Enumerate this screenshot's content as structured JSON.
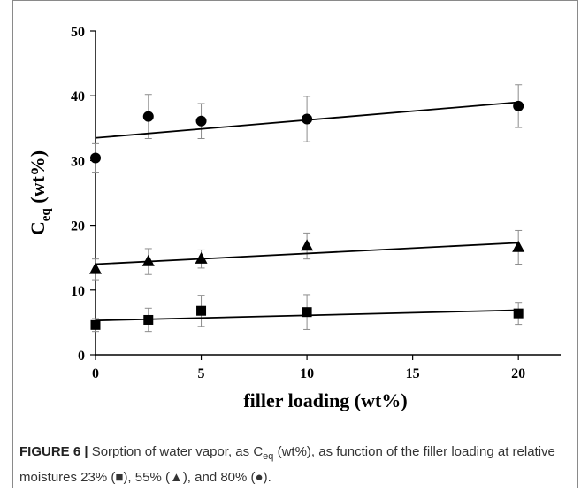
{
  "chart_data": {
    "type": "scatter",
    "title": "",
    "xlabel": "filler loading (wt%)",
    "ylabel_main": "C",
    "ylabel_sub": "eq",
    "ylabel_rest": " (wt%)",
    "xlim": [
      0,
      22
    ],
    "ylim": [
      0,
      50
    ],
    "x_ticks": [
      0,
      5,
      10,
      15,
      20
    ],
    "y_ticks": [
      0,
      10,
      20,
      30,
      40,
      50
    ],
    "grid": false,
    "legend": "none",
    "series": [
      {
        "marker": "square",
        "x": [
          0,
          2.5,
          5,
          10,
          20
        ],
        "y": [
          4.6,
          5.4,
          6.8,
          6.6,
          6.4
        ],
        "error": [
          1.0,
          1.8,
          2.4,
          2.7,
          1.7
        ],
        "fit": {
          "x": [
            0,
            20
          ],
          "y": [
            5.3,
            6.9
          ]
        }
      },
      {
        "marker": "triangle",
        "x": [
          0,
          2.5,
          5,
          10,
          20
        ],
        "y": [
          13.2,
          14.4,
          14.8,
          16.8,
          16.6
        ],
        "error": [
          1.6,
          2.0,
          1.4,
          2.0,
          2.6
        ],
        "fit": {
          "x": [
            0,
            20
          ],
          "y": [
            14.0,
            17.3
          ]
        }
      },
      {
        "marker": "circle",
        "x": [
          0,
          2.5,
          5,
          10,
          20
        ],
        "y": [
          30.4,
          36.8,
          36.1,
          36.4,
          38.4
        ],
        "error": [
          2.2,
          3.4,
          2.7,
          3.5,
          3.3
        ],
        "fit": {
          "x": [
            0,
            20
          ],
          "y": [
            33.5,
            39.0
          ]
        }
      }
    ]
  },
  "caption": {
    "label": "FIGURE 6 |",
    "text_1": " Sorption of water vapor, as C",
    "text_sub": "eq",
    "text_2": " (wt%), as function of the filler loading at relative moistures 23% (",
    "sym_square": "■",
    "text_3": "), 55% (",
    "sym_triangle": "▲",
    "text_4": "), and 80% (",
    "sym_circle": "●",
    "text_5": ")."
  },
  "colors": {
    "marker": "#000000",
    "fit_line": "#000000",
    "error_bar": "#8c8c8c",
    "frame": "#8a8a8a"
  }
}
